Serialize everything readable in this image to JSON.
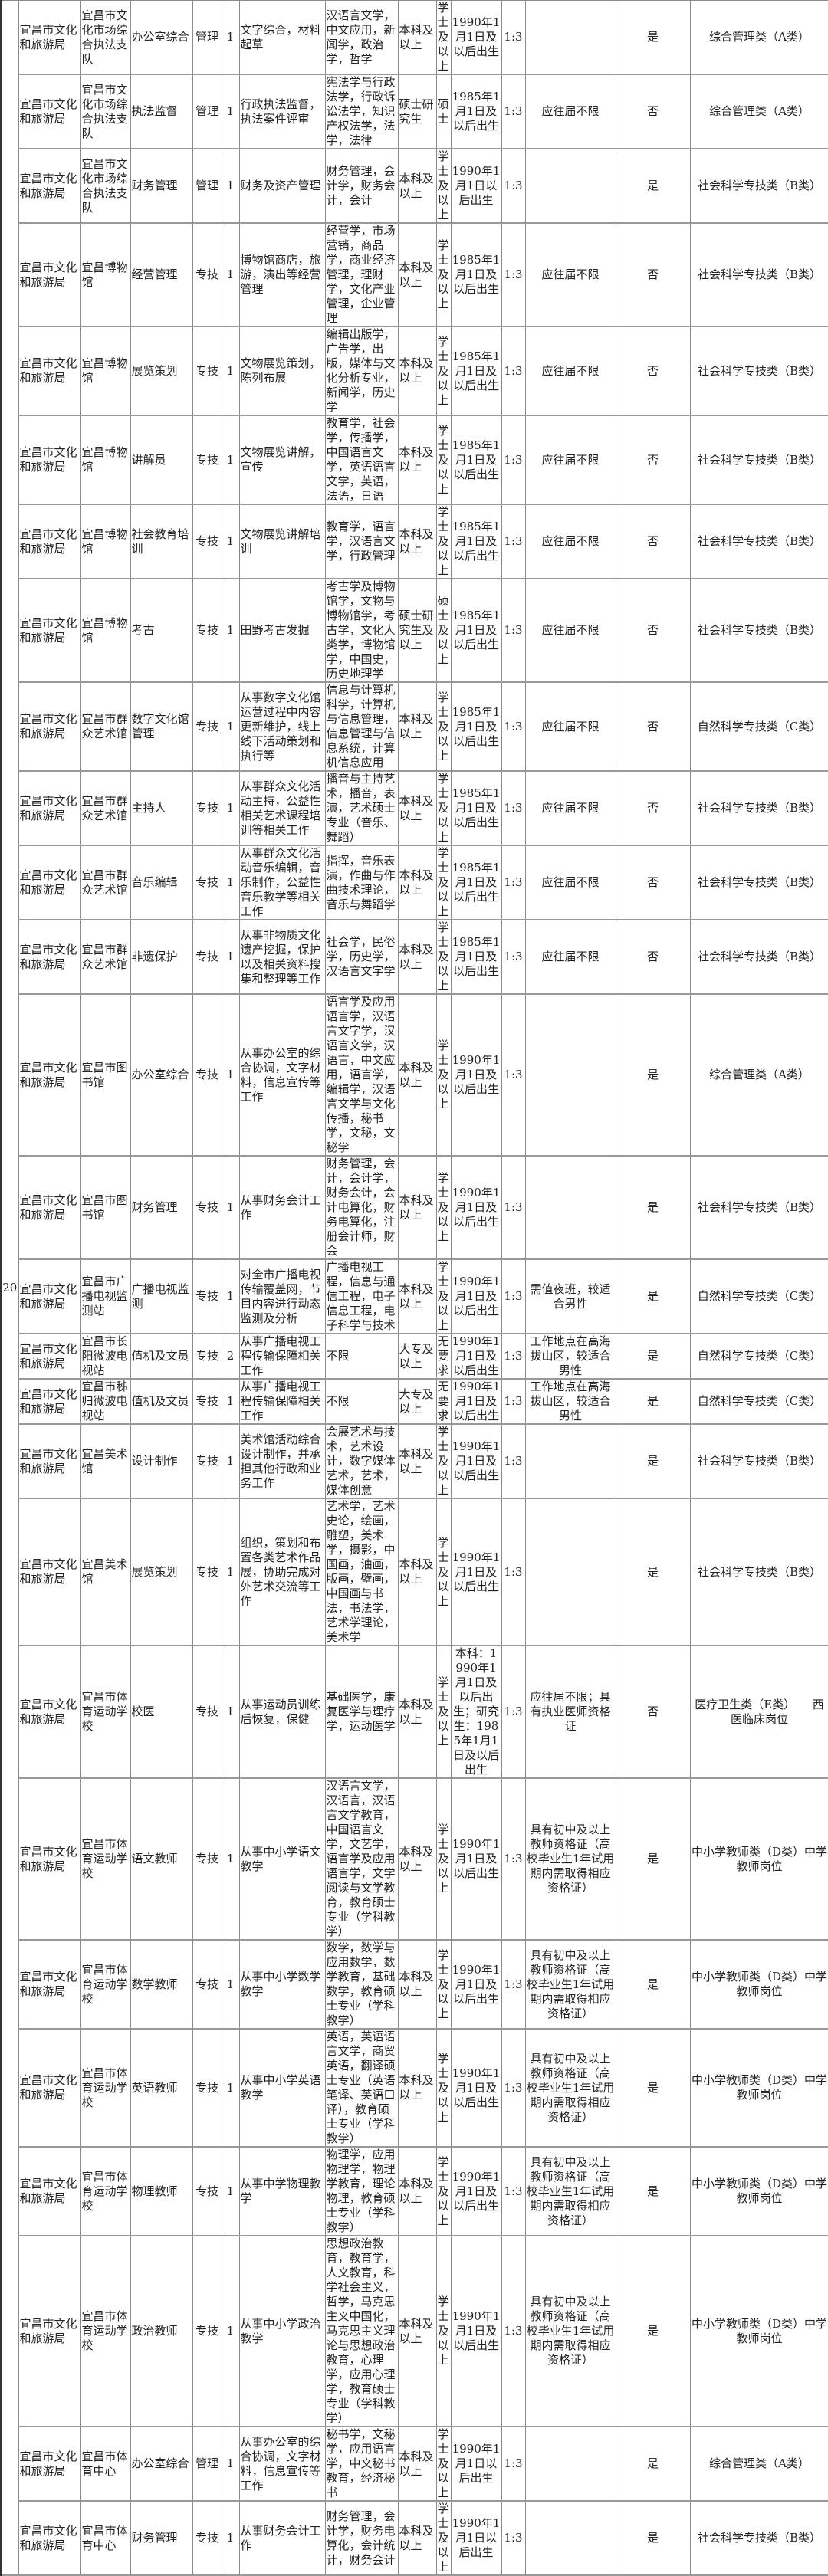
{
  "sequence_number": "20",
  "rows": [
    {
      "dept": "宜昌市文化和旅游局",
      "unit": "宜昌市文化市场综合执法支队",
      "post": "办公室综合",
      "type": "管理",
      "count": "1",
      "duties": "文字综合，材料起草",
      "majors": "汉语言文学，中文应用，新闻学，政治学，哲学",
      "edu": "本科及以上",
      "degree": "学士及以上",
      "age": "1990年1月1日及以后出生",
      "ratio": "1:3",
      "other": "",
      "flag": "是",
      "category": "综合管理类（A类）"
    },
    {
      "dept": "宜昌市文化和旅游局",
      "unit": "宜昌市文化市场综合执法支队",
      "post": "执法监督",
      "type": "管理",
      "count": "1",
      "duties": "行政执法监督，执法案件评审",
      "majors": "宪法学与行政法学，行政诉讼法学，知识产权法学，法学，法律",
      "edu": "硕士研究生",
      "degree": "硕士",
      "age": "1985年1月1日及以后出生",
      "ratio": "1:3",
      "other": "应往届不限",
      "flag": "否",
      "category": "综合管理类（A类）"
    },
    {
      "dept": "宜昌市文化和旅游局",
      "unit": "宜昌市文化市场综合执法支队",
      "post": "财务管理",
      "type": "管理",
      "count": "1",
      "duties": "财务及资产管理",
      "majors": "财务管理，会计学，财务会计，会计",
      "edu": "本科及以上",
      "degree": "学士及以上",
      "age": "1990年1月1日以后出生",
      "ratio": "1:3",
      "other": "",
      "flag": "是",
      "category": "社会科学专技类（B类）"
    },
    {
      "dept": "宜昌市文化和旅游局",
      "unit": "宜昌博物馆",
      "post": "经营管理",
      "type": "专技",
      "count": "1",
      "duties": "博物馆商店，旅游，演出等经营管理",
      "majors": "经营学，市场营销，商品学，商业经济管理，理财学，文化产业管理，企业管理",
      "edu": "本科及以上",
      "degree": "学士及以上",
      "age": "1985年1月1日及以后出生",
      "ratio": "1:3",
      "other": "应往届不限",
      "flag": "否",
      "category": "社会科学专技类（B类）"
    },
    {
      "dept": "宜昌市文化和旅游局",
      "unit": "宜昌博物馆",
      "post": "展览策划",
      "type": "专技",
      "count": "1",
      "duties": "文物展览策划，陈列布展",
      "majors": "编辑出版学，广告学，出版，媒体与文化分析专业，新闻学，历史学",
      "edu": "本科及以上",
      "degree": "学士及以上",
      "age": "1985年1月1日及以后出生",
      "ratio": "1:3",
      "other": "应往届不限",
      "flag": "否",
      "category": "社会科学专技类（B类）"
    },
    {
      "dept": "宜昌市文化和旅游局",
      "unit": "宜昌博物馆",
      "post": "讲解员",
      "type": "专技",
      "count": "1",
      "duties": "文物展览讲解，宣传",
      "majors": "教育学，社会学，传播学，中国语言文学，英语语言文学，英语，法语，日语",
      "edu": "本科及以上",
      "degree": "学士及以上",
      "age": "1985年1月1日及以后出生",
      "ratio": "1:3",
      "other": "应往届不限",
      "flag": "否",
      "category": "社会科学专技类（B类）"
    },
    {
      "dept": "宜昌市文化和旅游局",
      "unit": "宜昌博物馆",
      "post": "社会教育培训",
      "type": "专技",
      "count": "1",
      "duties": "文物展览讲解培训",
      "majors": "教育学，语言学，汉语言文学，行政管理",
      "edu": "本科及以上",
      "degree": "学士及以上",
      "age": "1985年1月1日及以后出生",
      "ratio": "1:3",
      "other": "应往届不限",
      "flag": "否",
      "category": "社会科学专技类（B类）"
    },
    {
      "dept": "宜昌市文化和旅游局",
      "unit": "宜昌博物馆",
      "post": "考古",
      "type": "专技",
      "count": "1",
      "duties": "田野考古发掘",
      "majors": "考古学及博物馆学，文物与博物馆学，考古学，文化人类学，博物馆学，中国史，历史地理学",
      "edu": "硕士研究生及以上",
      "degree": "硕士及以上",
      "age": "1985年1月1日及以后出生",
      "ratio": "1:3",
      "other": "应往届不限",
      "flag": "否",
      "category": "社会科学专技类（B类）"
    },
    {
      "dept": "宜昌市文化和旅游局",
      "unit": "宜昌市群众艺术馆",
      "post": "数字文化馆管理",
      "type": "专技",
      "count": "1",
      "duties": "从事数字文化馆运营过程中内容更新维护，线上线下活动策划和执行等",
      "majors": "信息与计算机科学，计算机与信息管理，信息管理与信息系统，计算机信息应用",
      "edu": "本科及以上",
      "degree": "学士及以上",
      "age": "1985年1月1日及以后出生",
      "ratio": "1:3",
      "other": "应往届不限",
      "flag": "否",
      "category": "自然科学专技类（C类）"
    },
    {
      "dept": "宜昌市文化和旅游局",
      "unit": "宜昌市群众艺术馆",
      "post": "主持人",
      "type": "专技",
      "count": "1",
      "duties": "从事群众文化活动主持，公益性相关艺术课程培训等相关工作",
      "majors": "播音与主持艺术，播音，表演，艺术硕士专业（音乐、舞蹈）",
      "edu": "本科及以上",
      "degree": "学士及以上",
      "age": "1985年1月1日及以后出生",
      "ratio": "1:3",
      "other": "应往届不限",
      "flag": "否",
      "category": "社会科学专技类（B类）"
    },
    {
      "dept": "宜昌市文化和旅游局",
      "unit": "宜昌市群众艺术馆",
      "post": "音乐编辑",
      "type": "专技",
      "count": "1",
      "duties": "从事群众文化活动音乐编辑，音乐制作，公益性音乐教学等相关工作",
      "majors": "指挥，音乐表演，作曲与作曲技术理论，音乐与舞蹈学",
      "edu": "本科及以上",
      "degree": "学士及以上",
      "age": "1985年1月1日及以后出生",
      "ratio": "1:3",
      "other": "应往届不限",
      "flag": "否",
      "category": "社会科学专技类（B类）"
    },
    {
      "dept": "宜昌市文化和旅游局",
      "unit": "宜昌市群众艺术馆",
      "post": "非遗保护",
      "type": "专技",
      "count": "1",
      "duties": "从事非物质文化遗产挖掘，保护以及相关资料搜集和整理等工作",
      "majors": "社会学，民俗学，历史学，汉语言文字学",
      "edu": "本科及以上",
      "degree": "学士及以上",
      "age": "1985年1月1日及以后出生",
      "ratio": "1:3",
      "other": "应往届不限",
      "flag": "否",
      "category": "社会科学专技类（B类）"
    },
    {
      "dept": "宜昌市文化和旅游局",
      "unit": "宜昌市图书馆",
      "post": "办公室综合",
      "type": "专技",
      "count": "1",
      "duties": "从事办公室的综合协调，文字材料，信息宣传等工作",
      "majors": "语言学及应用语言学，汉语言文字学，汉语言文学，汉语言，中文应用，语言学，编辑学，汉语言文学与文化传播，秘书学，文秘，文秘学",
      "edu": "本科及以上",
      "degree": "学士及以上",
      "age": "1990年1月1日及以后出生",
      "ratio": "1:3",
      "other": "",
      "flag": "是",
      "category": "综合管理类（A类）"
    },
    {
      "dept": "宜昌市文化和旅游局",
      "unit": "宜昌市图书馆",
      "post": "财务管理",
      "type": "专技",
      "count": "1",
      "duties": "从事财务会计工作",
      "majors": "财务管理，会计，会计学，财务会计，会计电算化，财务电算化，注册会计师，财会",
      "edu": "本科及以上",
      "degree": "学士及以上",
      "age": "1990年1月1日及以后出生",
      "ratio": "1:3",
      "other": "",
      "flag": "是",
      "category": "社会科学专技类（B类）"
    },
    {
      "dept": "宜昌市文化和旅游局",
      "unit": "宜昌市广播电视监测站",
      "post": "广播电视监测",
      "type": "专技",
      "count": "1",
      "duties": "对全市广播电视传输覆盖网，节目内容进行动态监测及分析",
      "majors": "广播电视工程，信息与通信工程，电子信息工程，电子科学与技术",
      "edu": "本科及以上",
      "degree": "学士及以上",
      "age": "1990年1月1日及以后出生",
      "ratio": "1:3",
      "other": "需值夜班，较适合男性",
      "flag": "是",
      "category": "自然科学专技类（C类）"
    },
    {
      "dept": "宜昌市文化和旅游局",
      "unit": "宜昌市长阳微波电视站",
      "post": "值机及文员",
      "type": "专技",
      "count": "2",
      "duties": "从事广播电视工程传输保障相关工作",
      "majors": "不限",
      "edu": "大专及以上",
      "degree": "无要求",
      "age": "1990年1月1日及以后出生",
      "ratio": "1:3",
      "other": "工作地点在高海拔山区，较适合男性",
      "flag": "是",
      "category": "自然科学专技类（C类）"
    },
    {
      "dept": "宜昌市文化和旅游局",
      "unit": "宜昌市秭归微波电视站",
      "post": "值机及文员",
      "type": "专技",
      "count": "1",
      "duties": "从事广播电视工程传输保障相关工作",
      "majors": "不限",
      "edu": "大专及以上",
      "degree": "无要求",
      "age": "1990年1月1日及以后出生",
      "ratio": "1:3",
      "other": "工作地点在高海拔山区，较适合男性",
      "flag": "是",
      "category": "自然科学专技类（C类）"
    },
    {
      "dept": "宜昌市文化和旅游局",
      "unit": "宜昌美术馆",
      "post": "设计制作",
      "type": "专技",
      "count": "1",
      "duties": "美术馆活动综合设计制作，并承担其他行政和业务工作",
      "majors": "会展艺术与技术，艺术设计，数字媒体艺术，艺术，媒体创意",
      "edu": "本科及以上",
      "degree": "学士及以上",
      "age": "1990年1月1日及以后出生",
      "ratio": "1:3",
      "other": "",
      "flag": "是",
      "category": "社会科学专技类（B类）"
    },
    {
      "dept": "宜昌市文化和旅游局",
      "unit": "宜昌美术馆",
      "post": "展览策划",
      "type": "专技",
      "count": "1",
      "duties": "组织，策划和布置各类艺术作品展，协助完成对外艺术交流等工作",
      "majors": "艺术学，艺术史论，绘画，雕塑，美术学，摄影，中国画，油画，版画，壁画，中国画与书法，书法学，艺术学理论，美术学",
      "edu": "本科及以上",
      "degree": "学士及以上",
      "age": "1990年1月1日及以后出生",
      "ratio": "1:3",
      "other": "",
      "flag": "是",
      "category": "社会科学专技类（B类）"
    },
    {
      "dept": "宜昌市文化和旅游局",
      "unit": "宜昌市体育运动学校",
      "post": "校医",
      "type": "专技",
      "count": "1",
      "duties": "从事运动员训练后恢复，保健",
      "majors": "基础医学，康复医学与理疗学，运动医学",
      "edu": "本科及以上",
      "degree": "学士及以上",
      "age": "本科：1990年1月1日及以后出生；研究生：1985年1月1日及以后出生",
      "ratio": "1:3",
      "other": "应往届不限；具有执业医师资格证",
      "flag": "否",
      "category": "医疗卫生类（E类）　　西医临床岗位"
    },
    {
      "dept": "宜昌市文化和旅游局",
      "unit": "宜昌市体育运动学校",
      "post": "语文教师",
      "type": "专技",
      "count": "1",
      "duties": "从事中小学语文教学",
      "majors": "汉语言文学，汉语言，汉语言文学教育，中国语言文学，文艺学，语言学及应用语言学，文学阅读与文学教育，教育硕士专业（学科教学）",
      "edu": "本科及以上",
      "degree": "学士及以上",
      "age": "1990年1月1日及以后出生",
      "ratio": "1:3",
      "other": "具有初中及以上教师资格证（高校毕业生1年试用期内需取得相应资格证）",
      "flag": "是",
      "category": "中小学教师类（D类）中学教师岗位"
    },
    {
      "dept": "宜昌市文化和旅游局",
      "unit": "宜昌市体育运动学校",
      "post": "数学教师",
      "type": "专技",
      "count": "1",
      "duties": "从事中小学数学教学",
      "majors": "数学，数学与应用数学，数学教育，基础数学，教育硕士专业（学科教学）",
      "edu": "本科及以上",
      "degree": "学士及以上",
      "age": "1990年1月1日及以后出生",
      "ratio": "1:3",
      "other": "具有初中及以上教师资格证（高校毕业生1年试用期内需取得相应资格证）",
      "flag": "是",
      "category": "中小学教师类（D类）中学教师岗位"
    },
    {
      "dept": "宜昌市文化和旅游局",
      "unit": "宜昌市体育运动学校",
      "post": "英语教师",
      "type": "专技",
      "count": "1",
      "duties": "从事中小学英语教学",
      "majors": "英语，英语语言文学，商贸英语，翻译硕士专业（英语笔译、英语口译），教育硕士专业（学科教学）",
      "edu": "本科及以上",
      "degree": "学士及以上",
      "age": "1990年1月1日及以后出生",
      "ratio": "1:3",
      "other": "具有初中及以上教师资格证（高校毕业生1年试用期内需取得相应资格证）",
      "flag": "是",
      "category": "中小学教师类（D类）中学教师岗位"
    },
    {
      "dept": "宜昌市文化和旅游局",
      "unit": "宜昌市体育运动学校",
      "post": "物理教师",
      "type": "专技",
      "count": "1",
      "duties": "从事中学物理教学",
      "majors": "物理学，应用物理学，物理学教育，理论物理，教育硕士专业（学科教学）",
      "edu": "本科及以上",
      "degree": "学士及以上",
      "age": "1990年1月1日及以后出生",
      "ratio": "1:3",
      "other": "具有初中及以上教师资格证（高校毕业生1年试用期内需取得相应资格证）",
      "flag": "是",
      "category": "中小学教师类（D类）中学教师岗位"
    },
    {
      "dept": "宜昌市文化和旅游局",
      "unit": "宜昌市体育运动学校",
      "post": "政治教师",
      "type": "专技",
      "count": "1",
      "duties": "从事中小学政治教学",
      "majors": "思想政治教育，教育学，人文教育，科学社会主义，哲学，马克思主义中国化，马克思主义理论与思想政治教育，心理学，应用心理学，教育硕士专业（学科教学）",
      "edu": "本科及以上",
      "degree": "学士及以上",
      "age": "1990年1月1日及以后出生",
      "ratio": "1:3",
      "other": "具有初中及以上教师资格证（高校毕业生1年试用期内需取得相应资格证）",
      "flag": "是",
      "category": "中小学教师类（D类）中学教师岗位"
    },
    {
      "dept": "宜昌市文化和旅游局",
      "unit": "宜昌市体育中心",
      "post": "办公室综合",
      "type": "管理",
      "count": "1",
      "duties": "从事办公室的综合协调，文字材料，信息宣传等工作",
      "majors": "秘书学，文秘学，应用语言学，中文秘书教育，经济秘书",
      "edu": "本科及以上",
      "degree": "学士及以上",
      "age": "1990年1月1日以后出生",
      "ratio": "1:3",
      "other": "",
      "flag": "是",
      "category": "综合管理类（A类）"
    },
    {
      "dept": "宜昌市文化和旅游局",
      "unit": "宜昌市体育中心",
      "post": "财务管理",
      "type": "专技",
      "count": "1",
      "duties": "从事财务会计工作",
      "majors": "财务管理，会计学，财务电算化，会计统计，财务会计",
      "edu": "本科及以上",
      "degree": "学士及以上",
      "age": "1990年1月1日以后出生",
      "ratio": "1:3",
      "other": "",
      "flag": "是",
      "category": "社会科学专技类（B类）"
    }
  ]
}
